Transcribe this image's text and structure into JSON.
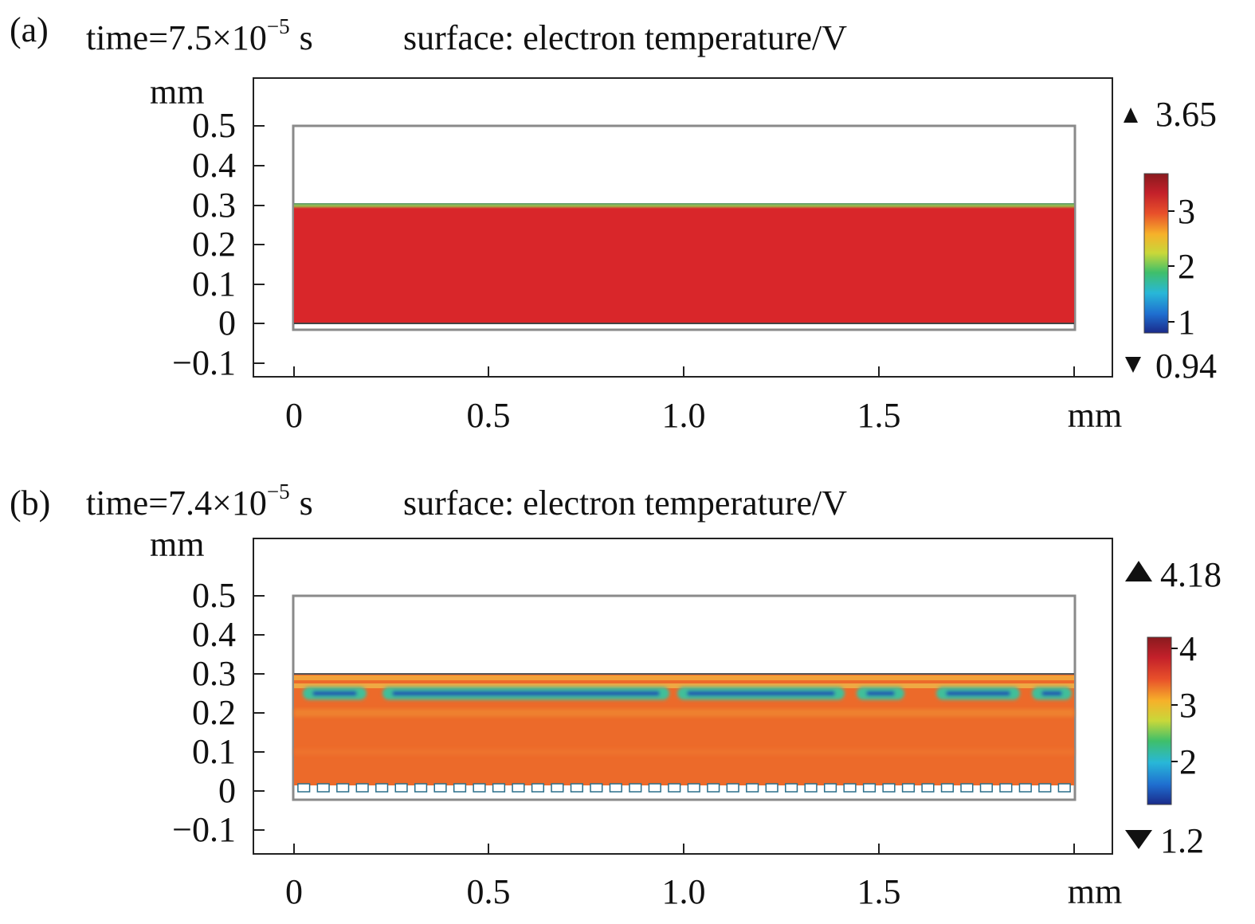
{
  "panels": [
    {
      "label": "(a)",
      "time_prefix": "time=7.5×10",
      "time_exp": "−5",
      "time_unit": "s",
      "surface_title": "surface: electron temperature/V",
      "colorbar": {
        "max_label": "3.65",
        "min_label": "0.94",
        "ticks": [
          "3",
          "2",
          "1"
        ],
        "tick_values": [
          3,
          2,
          1
        ],
        "range": [
          0.94,
          3.65
        ]
      }
    },
    {
      "label": "(b)",
      "time_prefix": "time=7.4×10",
      "time_exp": "−5",
      "time_unit": "s",
      "surface_title": "surface: electron temperature/V",
      "colorbar": {
        "max_label": "4.18",
        "min_label": "1.2",
        "ticks": [
          "4",
          "3",
          "2"
        ],
        "tick_values": [
          4,
          3,
          2
        ],
        "range": [
          1.2,
          4.18
        ]
      }
    }
  ],
  "axes": {
    "y_unit": "mm",
    "x_unit": "mm",
    "y_ticks": [
      "0.5",
      "0.4",
      "0.3",
      "0.2",
      "0.1",
      "0",
      "−0.1"
    ],
    "x_ticks": [
      "0",
      "0.5",
      "1.0",
      "1.5"
    ]
  },
  "chart_data": [
    {
      "type": "heatmap",
      "title": "time=7.5×10−5 s surface: electron temperature/V",
      "xlabel": "mm",
      "ylabel": "mm",
      "xlim": [
        0,
        2.0
      ],
      "ylim": [
        -0.1,
        0.5
      ],
      "domain": {
        "x": [
          0,
          2.0
        ],
        "y": [
          -0.02,
          0.5
        ]
      },
      "heated_region": {
        "y": [
          0.0,
          0.3
        ],
        "value": 3.5,
        "color": "#d9262a"
      },
      "colorbar": {
        "min": 0.94,
        "max": 3.65
      }
    },
    {
      "type": "heatmap",
      "title": "time=7.4×10−5 s surface: electron temperature/V",
      "xlabel": "mm",
      "ylabel": "mm",
      "xlim": [
        0,
        2.0
      ],
      "ylim": [
        -0.1,
        0.5
      ],
      "domain": {
        "x": [
          0,
          2.0
        ],
        "y": [
          -0.02,
          0.5
        ]
      },
      "heated_region": {
        "y": [
          0.0,
          0.3
        ],
        "value": 3.4,
        "color": "#ec6a2a"
      },
      "cool_band": {
        "y": 0.25,
        "value": 1.8
      },
      "electrode_teeth": 40,
      "colorbar": {
        "min": 1.2,
        "max": 4.18
      }
    }
  ],
  "colors": {
    "jet": [
      "#1a2a8a",
      "#1f6fd0",
      "#28b7d8",
      "#3fbf6a",
      "#c8d83a",
      "#f6b12a",
      "#e8502a",
      "#c3202a",
      "#8a1a1e"
    ],
    "heat_a": "#d9262a",
    "heat_b": "#ec6a2a"
  }
}
